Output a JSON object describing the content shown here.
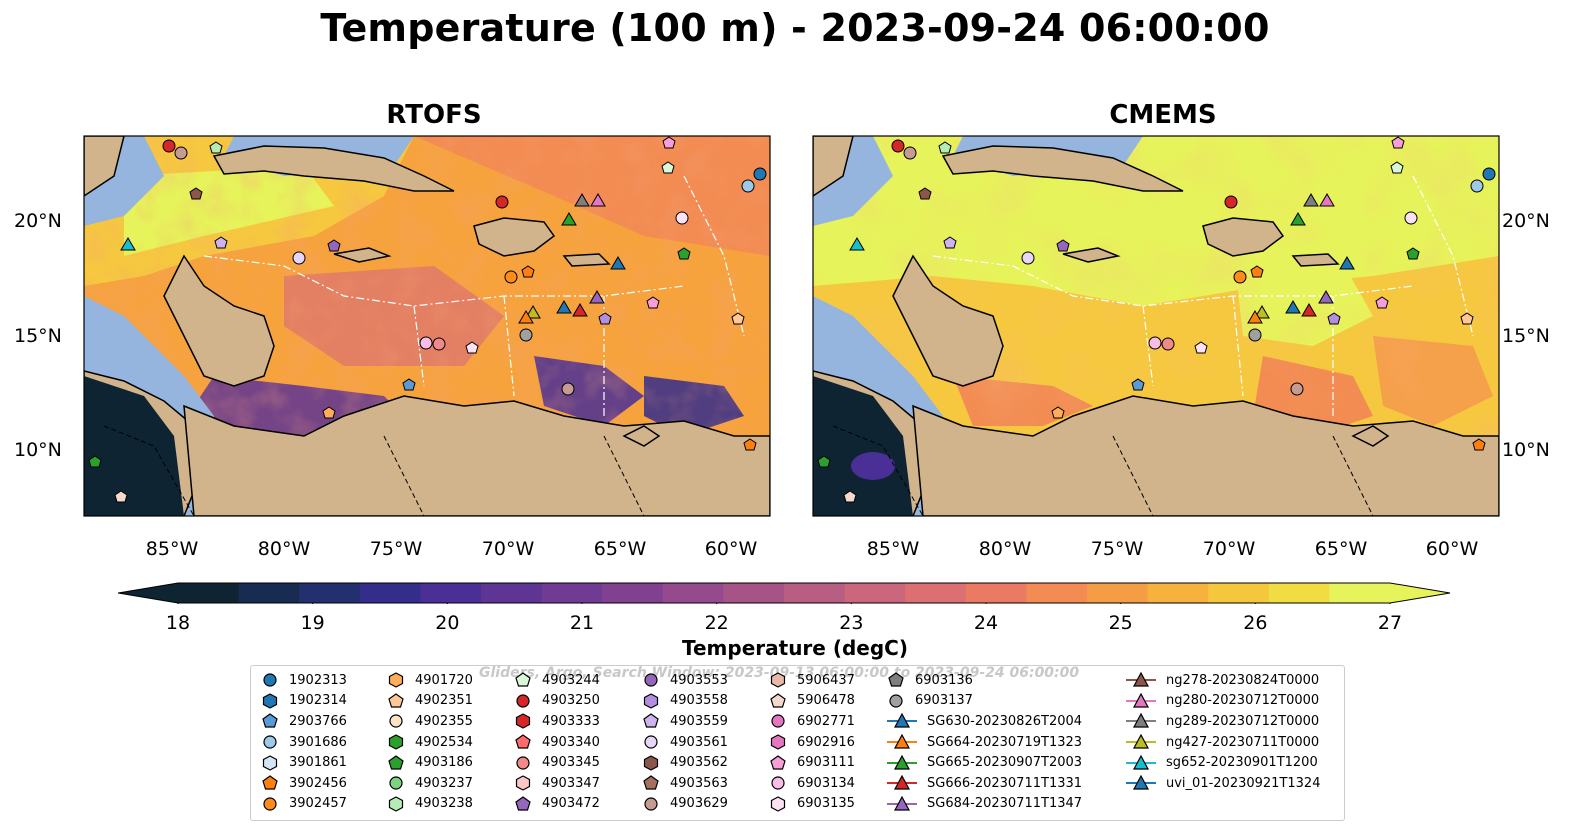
{
  "title": "Temperature (100 m) - 2023-09-24 06:00:00",
  "panels": [
    {
      "title": "RTOFS"
    },
    {
      "title": "CMEMS"
    }
  ],
  "axes": {
    "lat_labels": [
      "20°N",
      "15°N",
      "10°N"
    ],
    "lon_labels": [
      "85°W",
      "80°W",
      "75°W",
      "70°W",
      "65°W",
      "60°W"
    ]
  },
  "colorbar": {
    "label": "Temperature (degC)",
    "ticks": [
      "18",
      "19",
      "20",
      "21",
      "22",
      "23",
      "24",
      "25",
      "26",
      "27"
    ],
    "min": 18,
    "max": 27,
    "colors": [
      "#0e2432",
      "#182c52",
      "#23306e",
      "#342d8c",
      "#4a2f96",
      "#5e3494",
      "#703b92",
      "#824190",
      "#944a8c",
      "#a65488",
      "#b95e83",
      "#cb677c",
      "#dc6f72",
      "#ea7a62",
      "#f28c52",
      "#f59d44",
      "#f6b23c",
      "#f5c73c",
      "#f1dc43",
      "#e7f35a"
    ]
  },
  "legend": {
    "watermark": "Gliders, Argo, Search Window: 2023-09-13 06:00:00 to 2023-09-24 06:00:00",
    "columns": [
      [
        {
          "label": "1902313",
          "marker": "circle",
          "color": "#1f77b4"
        },
        {
          "label": "1902314",
          "marker": "hexagon",
          "color": "#1f77b4"
        },
        {
          "label": "2903766",
          "marker": "pentagon",
          "color": "#5a9bd5"
        },
        {
          "label": "3901686",
          "marker": "circle",
          "color": "#9ecae9"
        },
        {
          "label": "3901861",
          "marker": "hexagon",
          "color": "#d4e6f5"
        },
        {
          "label": "3902456",
          "marker": "pentagon",
          "color": "#ff7f0e"
        },
        {
          "label": "3902457",
          "marker": "circle",
          "color": "#ff8c1a"
        }
      ],
      [
        {
          "label": "4901720",
          "marker": "hexagon",
          "color": "#ffad5c"
        },
        {
          "label": "4902351",
          "marker": "pentagon",
          "color": "#ffc896"
        },
        {
          "label": "4902355",
          "marker": "circle",
          "color": "#ffe2c4"
        },
        {
          "label": "4902534",
          "marker": "hexagon",
          "color": "#2ca02c"
        },
        {
          "label": "4903186",
          "marker": "pentagon",
          "color": "#2ca02c"
        },
        {
          "label": "4903237",
          "marker": "circle",
          "color": "#7ed37e"
        },
        {
          "label": "4903238",
          "marker": "hexagon",
          "color": "#b5ecb5"
        }
      ],
      [
        {
          "label": "4903244",
          "marker": "pentagon",
          "color": "#d9f7d9"
        },
        {
          "label": "4903250",
          "marker": "circle",
          "color": "#d62728"
        },
        {
          "label": "4903333",
          "marker": "hexagon",
          "color": "#d62728"
        },
        {
          "label": "4903340",
          "marker": "pentagon",
          "color": "#ff6b6b"
        },
        {
          "label": "4903345",
          "marker": "circle",
          "color": "#f08a8a"
        },
        {
          "label": "4903347",
          "marker": "hexagon",
          "color": "#fcc6c6"
        },
        {
          "label": "4903472",
          "marker": "pentagon",
          "color": "#9467bd"
        }
      ],
      [
        {
          "label": "4903553",
          "marker": "circle",
          "color": "#9467bd"
        },
        {
          "label": "4903558",
          "marker": "hexagon",
          "color": "#b38ee0"
        },
        {
          "label": "4903559",
          "marker": "pentagon",
          "color": "#cfb3f0"
        },
        {
          "label": "4903561",
          "marker": "circle",
          "color": "#e6d6fa"
        },
        {
          "label": "4903562",
          "marker": "hexagon",
          "color": "#8c564b"
        },
        {
          "label": "4903563",
          "marker": "pentagon",
          "color": "#a5705f"
        },
        {
          "label": "4903629",
          "marker": "circle",
          "color": "#c49c94"
        }
      ],
      [
        {
          "label": "5906437",
          "marker": "hexagon",
          "color": "#e8b8a8"
        },
        {
          "label": "5906478",
          "marker": "pentagon",
          "color": "#f5d9cc"
        },
        {
          "label": "6902771",
          "marker": "circle",
          "color": "#e377c2"
        },
        {
          "label": "6902916",
          "marker": "hexagon",
          "color": "#e377c2"
        },
        {
          "label": "6903111",
          "marker": "pentagon",
          "color": "#f59ed8"
        },
        {
          "label": "6903134",
          "marker": "circle",
          "color": "#f9bde6"
        },
        {
          "label": "6903135",
          "marker": "hexagon",
          "color": "#fde2f3"
        }
      ],
      [
        {
          "label": "6903136",
          "marker": "pentagon",
          "color": "#7f7f7f"
        },
        {
          "label": "6903137",
          "marker": "circle",
          "color": "#a0a0a0"
        },
        {
          "label": "SG630-20230826T2004",
          "marker": "triangle",
          "color": "#1f77b4"
        },
        {
          "label": "SG664-20230719T1323",
          "marker": "triangle",
          "color": "#ff7f0e"
        },
        {
          "label": "SG665-20230907T2003",
          "marker": "triangle",
          "color": "#2ca02c"
        },
        {
          "label": "SG666-20230711T1331",
          "marker": "triangle",
          "color": "#d62728"
        },
        {
          "label": "SG684-20230711T1347",
          "marker": "triangle",
          "color": "#9467bd"
        }
      ],
      [
        {
          "label": "ng278-20230824T0000",
          "marker": "triangle",
          "color": "#8c564b"
        },
        {
          "label": "ng280-20230712T0000",
          "marker": "triangle",
          "color": "#e377c2"
        },
        {
          "label": "ng289-20230712T0000",
          "marker": "triangle",
          "color": "#7f7f7f"
        },
        {
          "label": "ng427-20230711T0000",
          "marker": "triangle",
          "color": "#bcbd22"
        },
        {
          "label": "sg652-20230901T1200",
          "marker": "triangle",
          "color": "#17becf"
        },
        {
          "label": "uvi_01-20230921T1324",
          "marker": "triangle",
          "color": "#1f77b4"
        }
      ]
    ]
  }
}
